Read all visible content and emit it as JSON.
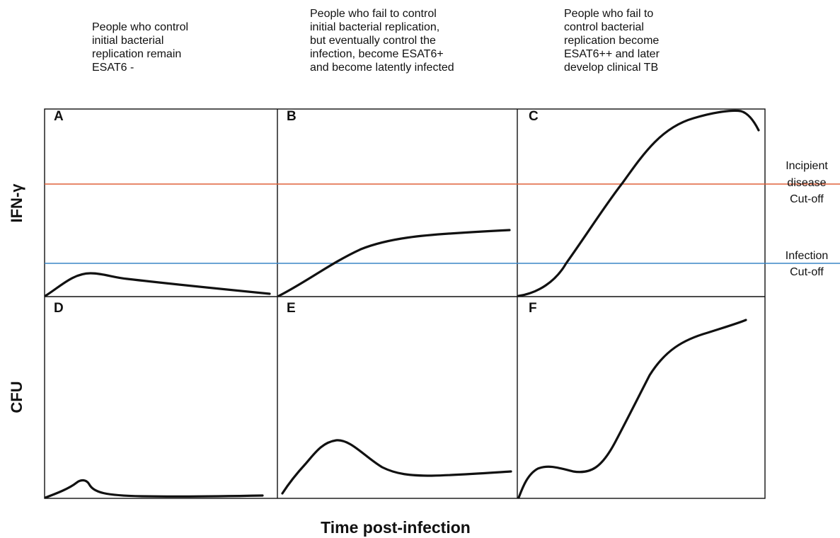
{
  "column_headers": [
    [
      "People who control",
      "initial bacterial",
      "replication remain",
      "ESAT6 -"
    ],
    [
      "People who fail to control",
      "initial bacterial replication,",
      "but eventually control the",
      "infection, become ESAT6+",
      "and become latently infected"
    ],
    [
      "People who fail to",
      "control bacterial",
      "replication become",
      "ESAT6++ and later",
      "develop clinical TB"
    ]
  ],
  "panels": [
    "A",
    "B",
    "C",
    "D",
    "E",
    "F"
  ],
  "y_axis_labels": {
    "top": "IFN-γ",
    "bottom": "CFU"
  },
  "x_axis_label": "Time post-infection",
  "cutoffs": {
    "incipient": {
      "lines": [
        "Incipient",
        "disease",
        "Cut-off"
      ],
      "color": "#e0603a"
    },
    "infection": {
      "lines": [
        "Infection",
        "Cut-off"
      ],
      "color": "#3a86c6"
    }
  },
  "curve_color": "#111111"
}
